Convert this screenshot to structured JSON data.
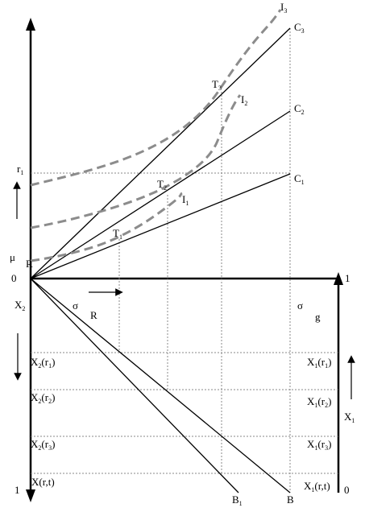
{
  "labels": {
    "I3": {
      "base": "I",
      "sub": "3"
    },
    "C3": {
      "base": "C",
      "sub": "3"
    },
    "T3": {
      "base": "T",
      "sub": "3"
    },
    "I2": {
      "base": "I",
      "sub": "2"
    },
    "C2": {
      "base": "C",
      "sub": "2"
    },
    "r1": {
      "base": "r",
      "sub": "1"
    },
    "C1": {
      "base": "C",
      "sub": "1"
    },
    "T2": {
      "base": "T",
      "sub": "2"
    },
    "I1": {
      "base": "I",
      "sub": "1"
    },
    "T1": {
      "base": "T",
      "sub": "1"
    },
    "mu": "μ",
    "R": "R",
    "zero_top": "0",
    "one_right": "1",
    "X2": {
      "base": "X",
      "sub": "2"
    },
    "sigma_R": "σ",
    "R_sub": "R",
    "sigma_g": "σ",
    "g": "g",
    "X2r1": {
      "pre": "X",
      "s1": "2",
      "mid": "(r",
      "s2": "1",
      "post": ")"
    },
    "X2r2": {
      "pre": "X",
      "s1": "2",
      "mid": "(r",
      "s2": "2",
      "post": ")"
    },
    "X2r3": {
      "pre": "X",
      "s1": "2",
      "mid": "(r",
      "s2": "3",
      "post": ")"
    },
    "Xrt": "X(r,t)",
    "X1r1": {
      "pre": "X",
      "s1": "1",
      "mid": "(r",
      "s2": "1",
      "post": ")"
    },
    "X1r2": {
      "pre": "X",
      "s1": "1",
      "mid": "(r",
      "s2": "2",
      "post": ")"
    },
    "X1r3": {
      "pre": "X",
      "s1": "1",
      "mid": "(r",
      "s2": "3",
      "post": ")"
    },
    "X1": {
      "base": "X",
      "sub": "1"
    },
    "X1rt": {
      "pre": "X",
      "s1": "1",
      "post": "(r,t)"
    },
    "one_bottom": "1",
    "B1": {
      "base": "B",
      "sub": "1"
    },
    "B": "B",
    "zero_bottom": "0"
  }
}
